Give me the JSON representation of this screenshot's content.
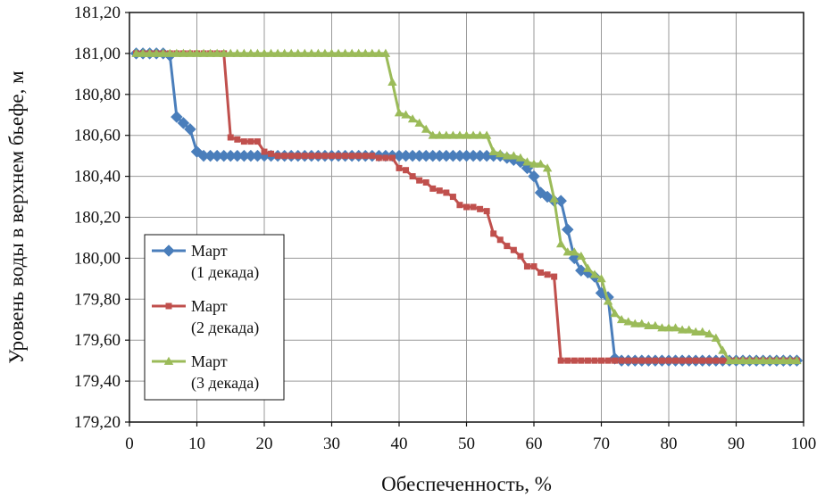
{
  "chart_data": {
    "type": "line",
    "title": "",
    "xlabel": "Обеспеченность, %",
    "ylabel": "Уровень воды в верхнем бьефе, м",
    "xlim": [
      0,
      100
    ],
    "ylim": [
      179.2,
      181.2
    ],
    "x_ticks": [
      0,
      10,
      20,
      30,
      40,
      50,
      60,
      70,
      80,
      90,
      100
    ],
    "x_tick_labels": [
      "0",
      "10",
      "20",
      "30",
      "40",
      "50",
      "60",
      "70",
      "80",
      "90",
      "100"
    ],
    "y_ticks": [
      179.2,
      179.4,
      179.6,
      179.8,
      180.0,
      180.2,
      180.4,
      180.6,
      180.8,
      181.0,
      181.2
    ],
    "y_tick_labels": [
      "179,20",
      "179,40",
      "179,60",
      "179,80",
      "180,00",
      "180,20",
      "180,40",
      "180,60",
      "180,80",
      "181,00",
      "181,20"
    ],
    "grid": true,
    "legend_position": "left-bottom",
    "series": [
      {
        "name_line1": "Март",
        "name_line2": "(1 декада)",
        "color": "#4a7ebb",
        "marker": "diamond",
        "x": [
          1,
          2,
          3,
          4,
          5,
          6,
          7,
          8,
          9,
          10,
          11,
          12,
          13,
          14,
          15,
          16,
          17,
          18,
          19,
          20,
          21,
          22,
          23,
          24,
          25,
          26,
          27,
          28,
          29,
          30,
          31,
          32,
          33,
          34,
          35,
          36,
          37,
          38,
          39,
          40,
          41,
          42,
          43,
          44,
          45,
          46,
          47,
          48,
          49,
          50,
          51,
          52,
          53,
          54,
          55,
          56,
          57,
          58,
          59,
          60,
          61,
          62,
          63,
          64,
          65,
          66,
          67,
          68,
          69,
          70,
          71,
          72,
          73,
          74,
          75,
          76,
          77,
          78,
          79,
          80,
          81,
          82,
          83,
          84,
          85,
          86,
          87,
          88,
          89,
          90,
          91,
          92,
          93,
          94,
          95,
          96,
          97,
          98,
          99
        ],
        "y": [
          181.0,
          181.0,
          181.0,
          181.0,
          181.0,
          180.99,
          180.69,
          180.66,
          180.63,
          180.52,
          180.5,
          180.5,
          180.5,
          180.5,
          180.5,
          180.5,
          180.5,
          180.5,
          180.5,
          180.5,
          180.5,
          180.5,
          180.5,
          180.5,
          180.5,
          180.5,
          180.5,
          180.5,
          180.5,
          180.5,
          180.5,
          180.5,
          180.5,
          180.5,
          180.5,
          180.5,
          180.5,
          180.5,
          180.5,
          180.5,
          180.5,
          180.5,
          180.5,
          180.5,
          180.5,
          180.5,
          180.5,
          180.5,
          180.5,
          180.5,
          180.5,
          180.5,
          180.5,
          180.5,
          180.5,
          180.49,
          180.48,
          180.47,
          180.44,
          180.4,
          180.32,
          180.3,
          180.28,
          180.28,
          180.14,
          180.0,
          179.94,
          179.93,
          179.91,
          179.83,
          179.81,
          179.51,
          179.5,
          179.5,
          179.5,
          179.5,
          179.5,
          179.5,
          179.5,
          179.5,
          179.5,
          179.5,
          179.5,
          179.5,
          179.5,
          179.5,
          179.5,
          179.5,
          179.5,
          179.5,
          179.5,
          179.5,
          179.5,
          179.5,
          179.5,
          179.5,
          179.5,
          179.5,
          179.5
        ]
      },
      {
        "name_line1": "Март",
        "name_line2": "(2 декада)",
        "color": "#c0504d",
        "marker": "square",
        "x": [
          1,
          2,
          3,
          4,
          5,
          6,
          7,
          8,
          9,
          10,
          11,
          12,
          13,
          14,
          15,
          16,
          17,
          18,
          19,
          20,
          21,
          22,
          23,
          24,
          25,
          26,
          27,
          28,
          29,
          30,
          31,
          32,
          33,
          34,
          35,
          36,
          37,
          38,
          39,
          40,
          41,
          42,
          43,
          44,
          45,
          46,
          47,
          48,
          49,
          50,
          51,
          52,
          53,
          54,
          55,
          56,
          57,
          58,
          59,
          60,
          61,
          62,
          63,
          64,
          65,
          66,
          67,
          68,
          69,
          70,
          71,
          72,
          73,
          74,
          75,
          76,
          77,
          78,
          79,
          80,
          81,
          82,
          83,
          84,
          85,
          86,
          87,
          88,
          89,
          90,
          91,
          92,
          93,
          94,
          95,
          96,
          97,
          98,
          99
        ],
        "y": [
          181.0,
          181.0,
          181.0,
          181.0,
          181.0,
          181.0,
          181.0,
          181.0,
          181.0,
          181.0,
          181.0,
          181.0,
          181.0,
          181.0,
          180.59,
          180.58,
          180.57,
          180.57,
          180.57,
          180.52,
          180.51,
          180.5,
          180.5,
          180.5,
          180.5,
          180.5,
          180.5,
          180.5,
          180.5,
          180.5,
          180.5,
          180.5,
          180.5,
          180.5,
          180.5,
          180.5,
          180.49,
          180.49,
          180.49,
          180.44,
          180.43,
          180.4,
          180.38,
          180.37,
          180.34,
          180.33,
          180.32,
          180.3,
          180.26,
          180.25,
          180.25,
          180.24,
          180.23,
          180.12,
          180.09,
          180.06,
          180.04,
          180.01,
          179.96,
          179.96,
          179.93,
          179.92,
          179.91,
          179.5,
          179.5,
          179.5,
          179.5,
          179.5,
          179.5,
          179.5,
          179.5,
          179.5,
          179.5,
          179.5,
          179.5,
          179.5,
          179.5,
          179.5,
          179.5,
          179.5,
          179.5,
          179.5,
          179.5,
          179.5,
          179.5,
          179.5,
          179.5,
          179.5,
          179.5,
          179.5,
          179.5,
          179.5,
          179.5,
          179.5,
          179.5,
          179.5,
          179.5,
          179.5,
          179.5
        ]
      },
      {
        "name_line1": "Март",
        "name_line2": "(3 декада)",
        "color": "#9bbb59",
        "marker": "triangle",
        "x": [
          1,
          2,
          3,
          4,
          5,
          6,
          7,
          8,
          9,
          10,
          11,
          12,
          13,
          14,
          15,
          16,
          17,
          18,
          19,
          20,
          21,
          22,
          23,
          24,
          25,
          26,
          27,
          28,
          29,
          30,
          31,
          32,
          33,
          34,
          35,
          36,
          37,
          38,
          39,
          40,
          41,
          42,
          43,
          44,
          45,
          46,
          47,
          48,
          49,
          50,
          51,
          52,
          53,
          54,
          55,
          56,
          57,
          58,
          59,
          60,
          61,
          62,
          63,
          64,
          65,
          66,
          67,
          68,
          69,
          70,
          71,
          72,
          73,
          74,
          75,
          76,
          77,
          78,
          79,
          80,
          81,
          82,
          83,
          84,
          85,
          86,
          87,
          88,
          89,
          90,
          91,
          92,
          93,
          94,
          95,
          96,
          97,
          98,
          99
        ],
        "y": [
          181.0,
          181.0,
          181.0,
          181.0,
          181.0,
          181.0,
          181.0,
          181.0,
          181.0,
          181.0,
          181.0,
          181.0,
          181.0,
          181.0,
          181.0,
          181.0,
          181.0,
          181.0,
          181.0,
          181.0,
          181.0,
          181.0,
          181.0,
          181.0,
          181.0,
          181.0,
          181.0,
          181.0,
          181.0,
          181.0,
          181.0,
          181.0,
          181.0,
          181.0,
          181.0,
          181.0,
          181.0,
          181.0,
          180.86,
          180.71,
          180.7,
          180.68,
          180.66,
          180.63,
          180.6,
          180.6,
          180.6,
          180.6,
          180.6,
          180.6,
          180.6,
          180.6,
          180.6,
          180.52,
          180.51,
          180.5,
          180.5,
          180.49,
          180.47,
          180.46,
          180.46,
          180.44,
          180.29,
          180.07,
          180.03,
          180.03,
          180.01,
          179.95,
          179.92,
          179.9,
          179.79,
          179.73,
          179.7,
          179.69,
          179.68,
          179.68,
          179.67,
          179.67,
          179.66,
          179.66,
          179.66,
          179.65,
          179.65,
          179.64,
          179.64,
          179.63,
          179.61,
          179.55,
          179.5,
          179.5,
          179.5,
          179.5,
          179.5,
          179.5,
          179.5,
          179.5,
          179.5,
          179.5,
          179.5
        ]
      }
    ]
  }
}
